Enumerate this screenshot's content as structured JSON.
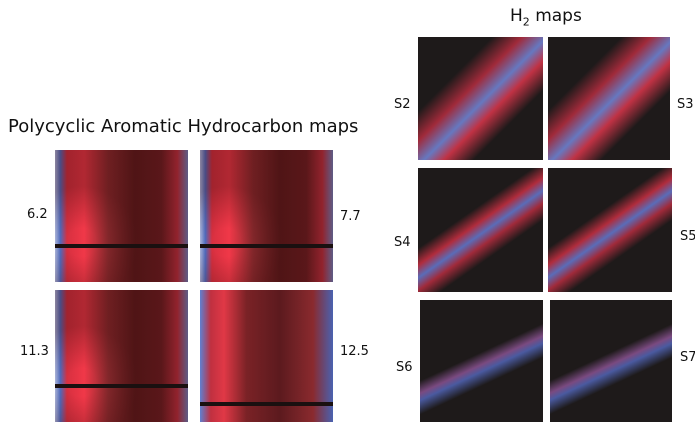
{
  "pah": {
    "title": "Polycyclic Aromatic Hydrocarbon maps",
    "labels": [
      "6.2",
      "7.7",
      "11.3",
      "12.5"
    ]
  },
  "h2": {
    "title": {
      "main": "H",
      "sub": "2",
      "rest": " maps"
    },
    "labels": [
      "S2",
      "S3",
      "S4",
      "S5",
      "S6",
      "S7"
    ]
  }
}
